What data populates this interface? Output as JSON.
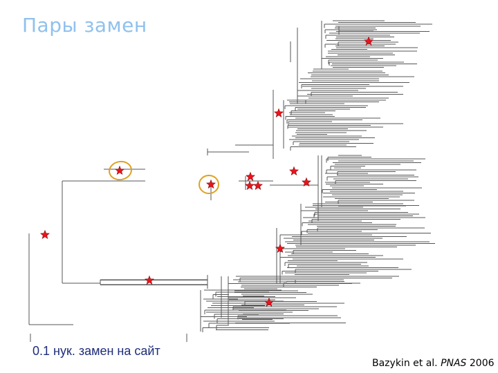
{
  "slide": {
    "title": "Пары замен",
    "scale_bar_label": "0.1 нук. замен на сайт",
    "citation_authors": "Bazykin et al. ",
    "citation_journal": "PNAS",
    "citation_year": " 2006"
  },
  "icons": {
    "substitution_marker": "red-star-icon",
    "highlight_marker": "orange-ellipse"
  },
  "colors": {
    "title": "#8fc1ee",
    "scale_label": "#1e2d7a",
    "star_fill": "#e8141c",
    "star_stroke": "#8a0a0e",
    "ellipse": "#e0a020",
    "branches": "#555555"
  }
}
